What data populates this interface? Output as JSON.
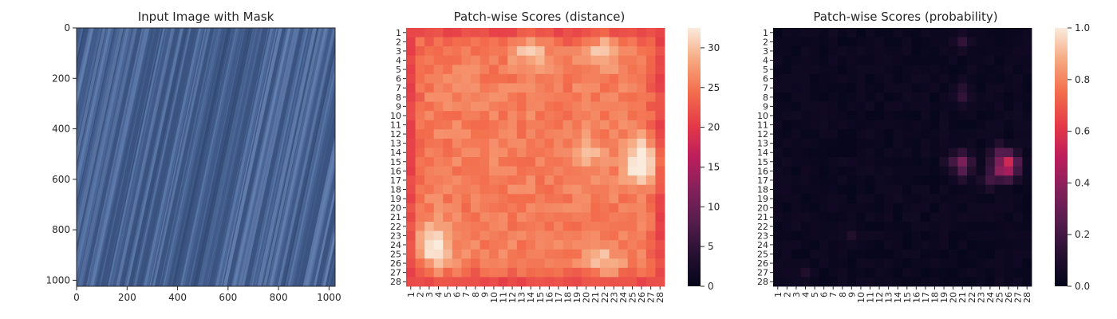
{
  "chart_data": [
    {
      "type": "image",
      "title": "Input Image with Mask",
      "xlim": [
        0,
        1024
      ],
      "ylim": [
        1024,
        0
      ],
      "x_ticks": [
        "0",
        "200",
        "400",
        "600",
        "800",
        "1000"
      ],
      "x_tick_values": [
        0,
        200,
        400,
        600,
        800,
        1000
      ],
      "y_ticks": [
        "0",
        "200",
        "400",
        "600",
        "800",
        "1000"
      ],
      "y_tick_values": [
        0,
        200,
        400,
        600,
        800,
        1000
      ],
      "colors": {
        "base": "#4a6596",
        "streak_dark": "#2f4670",
        "streak_light": "#6f8ab8"
      }
    },
    {
      "type": "heatmap",
      "title": "Patch-wise Scores (distance)",
      "rows": 28,
      "cols": 28,
      "row_labels": [
        "1",
        "2",
        "3",
        "4",
        "5",
        "6",
        "7",
        "8",
        "9",
        "10",
        "11",
        "12",
        "13",
        "14",
        "15",
        "16",
        "17",
        "18",
        "19",
        "20",
        "21",
        "22",
        "23",
        "24",
        "25",
        "26",
        "27",
        "28"
      ],
      "col_labels": [
        "1",
        "2",
        "3",
        "4",
        "5",
        "6",
        "7",
        "8",
        "9",
        "10",
        "11",
        "12",
        "13",
        "14",
        "15",
        "16",
        "17",
        "18",
        "19",
        "20",
        "21",
        "22",
        "23",
        "24",
        "25",
        "26",
        "27",
        "28"
      ],
      "colorbar": {
        "min": 0,
        "max": 32.5,
        "ticks": [
          "0",
          "5",
          "10",
          "15",
          "20",
          "25",
          "30"
        ],
        "tick_values": [
          0,
          5,
          10,
          15,
          20,
          25,
          30
        ]
      },
      "colormap": "rocket",
      "pattern": {
        "border_value": 20.5,
        "interior_base": 25.5,
        "hotspots": [
          {
            "row": 3,
            "col": 14,
            "value": 31
          },
          {
            "row": 3,
            "col": 22,
            "value": 31
          },
          {
            "row": 14,
            "col": 20,
            "value": 30
          },
          {
            "row": 14,
            "col": 26,
            "value": 32
          },
          {
            "row": 16,
            "col": 26,
            "value": 32
          },
          {
            "row": 23,
            "col": 3,
            "value": 30
          },
          {
            "row": 25,
            "col": 4,
            "value": 31
          },
          {
            "row": 26,
            "col": 22,
            "value": 30
          }
        ]
      }
    },
    {
      "type": "heatmap",
      "title": "Patch-wise Scores (probability)",
      "rows": 28,
      "cols": 28,
      "row_labels": [
        "1",
        "2",
        "3",
        "4",
        "5",
        "6",
        "7",
        "8",
        "9",
        "10",
        "11",
        "12",
        "13",
        "14",
        "15",
        "16",
        "17",
        "18",
        "19",
        "20",
        "21",
        "22",
        "23",
        "24",
        "25",
        "26",
        "27",
        "28"
      ],
      "col_labels": [
        "1",
        "2",
        "3",
        "4",
        "5",
        "6",
        "7",
        "8",
        "9",
        "10",
        "11",
        "12",
        "13",
        "14",
        "15",
        "16",
        "17",
        "18",
        "19",
        "20",
        "21",
        "22",
        "23",
        "24",
        "25",
        "26",
        "27",
        "28"
      ],
      "colorbar": {
        "min": 0,
        "max": 1.0,
        "ticks": [
          "0.0",
          "0.2",
          "0.4",
          "0.6",
          "0.8",
          "1.0"
        ],
        "tick_values": [
          0,
          0.2,
          0.4,
          0.6,
          0.8,
          1.0
        ]
      },
      "colormap": "rocket",
      "hotspots": [
        {
          "row": 15,
          "col": 20,
          "value": 0.2
        },
        {
          "row": 15,
          "col": 21,
          "value": 0.35
        },
        {
          "row": 16,
          "col": 21,
          "value": 0.25
        },
        {
          "row": 15,
          "col": 25,
          "value": 0.35
        },
        {
          "row": 15,
          "col": 26,
          "value": 0.55
        },
        {
          "row": 16,
          "col": 25,
          "value": 0.4
        },
        {
          "row": 16,
          "col": 26,
          "value": 0.45
        },
        {
          "row": 14,
          "col": 25,
          "value": 0.25
        },
        {
          "row": 17,
          "col": 24,
          "value": 0.2
        },
        {
          "row": 2,
          "col": 21,
          "value": 0.15
        },
        {
          "row": 7,
          "col": 21,
          "value": 0.12
        },
        {
          "row": 8,
          "col": 21,
          "value": 0.15
        },
        {
          "row": 23,
          "col": 9,
          "value": 0.1
        },
        {
          "row": 27,
          "col": 4,
          "value": 0.1
        }
      ]
    }
  ]
}
